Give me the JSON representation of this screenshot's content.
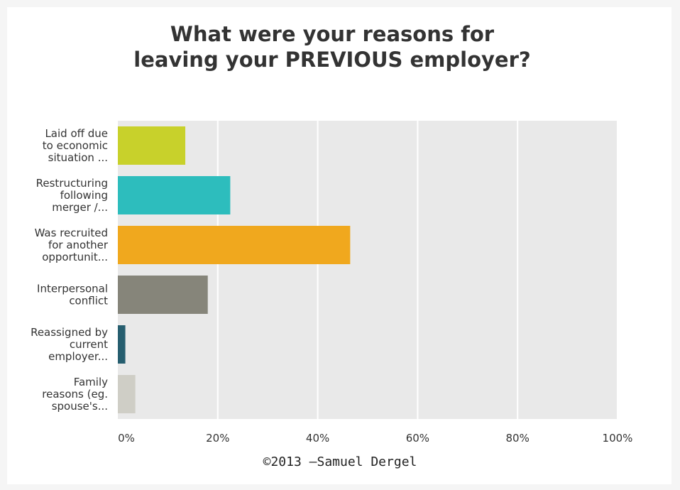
{
  "chart_data": {
    "type": "bar",
    "orientation": "horizontal",
    "title_lines": [
      "What were your reasons for",
      "leaving your PREVIOUS employer?"
    ],
    "categories": [
      [
        "Laid off due",
        "to economic",
        "situation ..."
      ],
      [
        "Restructuring",
        "following",
        "merger /..."
      ],
      [
        "Was recruited",
        "for another",
        "opportunit..."
      ],
      [
        "Interpersonal",
        "conflict"
      ],
      [
        "Reassigned by",
        "current",
        "employer..."
      ],
      [
        "Family",
        "reasons (eg.",
        "spouse's..."
      ]
    ],
    "values": [
      13.5,
      22.5,
      46.5,
      18,
      1.5,
      3.5
    ],
    "colors": [
      "#c8d12b",
      "#2dbdbd",
      "#f0a81e",
      "#86857a",
      "#265e6f",
      "#cfcec6"
    ],
    "xlim": [
      0,
      100
    ],
    "ticks": [
      "0%",
      "20%",
      "40%",
      "60%",
      "80%",
      "100%"
    ],
    "tick_values": [
      0,
      20,
      40,
      60,
      80,
      100
    ],
    "grid": true,
    "plot_background": "#e9e9e9"
  },
  "credit": "©2013 —Samuel Dergel"
}
